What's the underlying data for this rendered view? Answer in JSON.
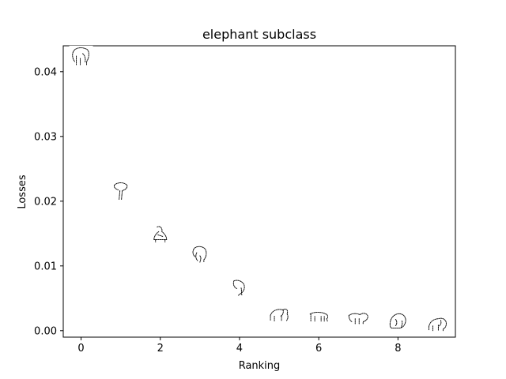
{
  "chart_data": {
    "type": "scatter",
    "title": "elephant subclass",
    "xlabel": "Ranking",
    "ylabel": "Losses",
    "xlim": [
      -0.45,
      9.45
    ],
    "ylim": [
      -0.001,
      0.044
    ],
    "xticks": [
      0,
      2,
      4,
      6,
      8
    ],
    "xtick_labels": [
      "0",
      "2",
      "4",
      "6",
      "8"
    ],
    "yticks": [
      0.0,
      0.01,
      0.02,
      0.03,
      0.04
    ],
    "ytick_labels": [
      "0.00",
      "0.01",
      "0.02",
      "0.03",
      "0.04"
    ],
    "grid": false,
    "marker": "elephant-sketch-thumbnail",
    "x": [
      0,
      1,
      2,
      3,
      4,
      5,
      6,
      7,
      8,
      9
    ],
    "y": [
      0.0423,
      0.0215,
      0.0148,
      0.0118,
      0.0066,
      0.0026,
      0.0022,
      0.0021,
      0.0015,
      0.0011
    ]
  }
}
